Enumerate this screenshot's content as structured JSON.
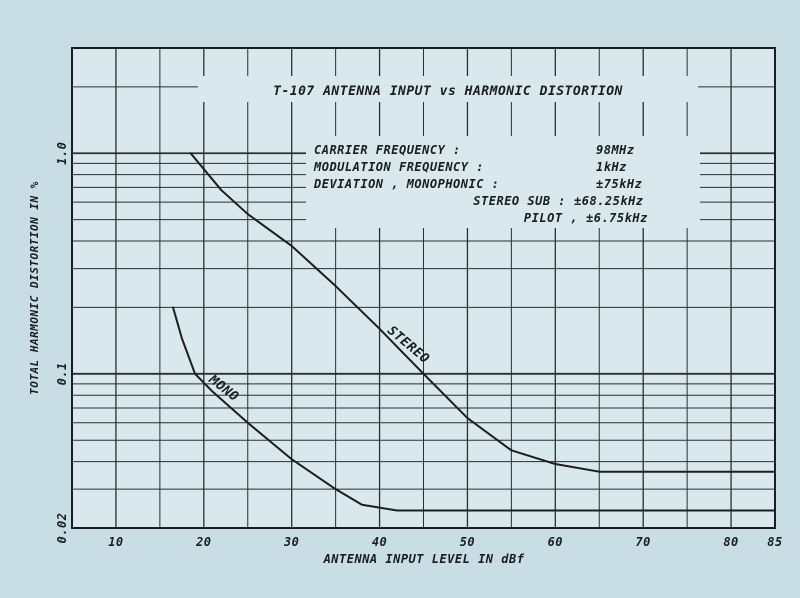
{
  "chart_data": {
    "type": "line",
    "title": "T-107 ANTENNA INPUT vs HARMONIC DISTORTION",
    "xlabel": "ANTENNA INPUT LEVEL IN dBf",
    "ylabel": "TOTAL HARMONIC DISTORTION IN %",
    "xlim": [
      5,
      85
    ],
    "ylim": [
      0.02,
      3.0
    ],
    "yscale": "log",
    "x_ticks": [
      10,
      20,
      30,
      40,
      50,
      60,
      70,
      80,
      85
    ],
    "x_tick_labels": [
      "10",
      "20",
      "30",
      "40",
      "50",
      "60",
      "70",
      "80",
      "85"
    ],
    "y_ticks": [
      0.02,
      0.1,
      1.0
    ],
    "y_tick_labels": [
      "0.02",
      "0.1",
      "1.0"
    ],
    "grid": true,
    "conditions": [
      {
        "label": "CARRIER FREQUENCY :",
        "value": "98MHz"
      },
      {
        "label": "MODULATION FREQUENCY :",
        "value": "1kHz"
      },
      {
        "label": "DEVIATION , MONOPHONIC :",
        "value": "±75kHz"
      },
      {
        "label": "STEREO SUB :",
        "value": "±68.25kHz"
      },
      {
        "label": "PILOT ,",
        "value": "±6.75kHz"
      }
    ],
    "series": [
      {
        "name": "STEREO",
        "x": [
          18.5,
          22,
          25,
          30,
          35,
          40,
          45,
          50,
          55,
          60,
          65,
          70,
          75,
          80,
          85
        ],
        "y": [
          1.0,
          0.68,
          0.53,
          0.38,
          0.25,
          0.16,
          0.1,
          0.063,
          0.045,
          0.039,
          0.036,
          0.036,
          0.036,
          0.036,
          0.036
        ]
      },
      {
        "name": "MONO",
        "x": [
          16.5,
          17.5,
          19,
          21,
          25,
          30,
          35,
          38,
          42,
          45,
          50,
          60,
          70,
          80,
          85
        ],
        "y": [
          0.2,
          0.145,
          0.1,
          0.083,
          0.06,
          0.041,
          0.03,
          0.0255,
          0.024,
          0.024,
          0.024,
          0.024,
          0.024,
          0.024,
          0.024
        ]
      }
    ]
  }
}
